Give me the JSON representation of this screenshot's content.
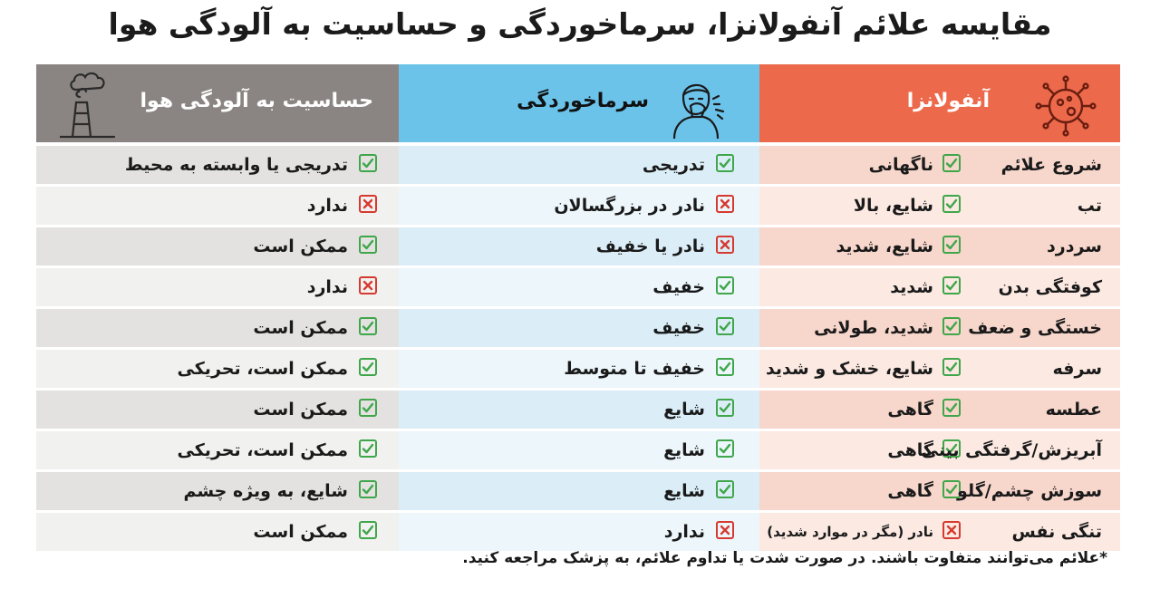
{
  "title": "مقایسه علائم آنفولانزا، سرماخوردگی و حساسیت به آلودگی هوا",
  "headers": {
    "allergy": "حساسیت به آلودگی هوا",
    "cold": "سرماخوردگی",
    "flu": "آنفولانزا"
  },
  "icons": {
    "allergy": "factory-pollution-icon",
    "cold": "sneezing-person-icon",
    "flu": "virus-icon"
  },
  "colors": {
    "allergy_header": "#8a8582",
    "cold_header": "#6cc3ea",
    "flu_header": "#ec6a4b",
    "check": "#3fa64a",
    "cross": "#d63a2f"
  },
  "rows": [
    {
      "symptom": "شروع علائم",
      "flu": "ناگهانی",
      "flu_mark": "check",
      "cold": "تدریجی",
      "cold_mark": "check",
      "allergy": "تدریجی یا وابسته به محیط",
      "allergy_mark": "check"
    },
    {
      "symptom": "تب",
      "flu": "شایع، بالا",
      "flu_mark": "check",
      "cold": "نادر در بزرگسالان",
      "cold_mark": "cross",
      "allergy": "ندارد",
      "allergy_mark": "cross"
    },
    {
      "symptom": "سردرد",
      "flu": "شایع، شدید",
      "flu_mark": "check",
      "cold": "نادر یا خفیف",
      "cold_mark": "cross",
      "allergy": "ممکن است",
      "allergy_mark": "check"
    },
    {
      "symptom": "کوفتگی بدن",
      "flu": "شدید",
      "flu_mark": "check",
      "cold": "خفیف",
      "cold_mark": "check",
      "allergy": "ندارد",
      "allergy_mark": "cross"
    },
    {
      "symptom": "خستگی و ضعف",
      "flu": "شدید، طولانی",
      "flu_mark": "check",
      "cold": "خفیف",
      "cold_mark": "check",
      "allergy": "ممکن است",
      "allergy_mark": "check"
    },
    {
      "symptom": "سرفه",
      "flu": "شایع، خشک و شدید",
      "flu_mark": "check",
      "cold": "خفیف تا متوسط",
      "cold_mark": "check",
      "allergy": "ممکن است، تحریکی",
      "allergy_mark": "check"
    },
    {
      "symptom": "عطسه",
      "flu": "گاهی",
      "flu_mark": "check",
      "cold": "شایع",
      "cold_mark": "check",
      "allergy": "ممکن است",
      "allergy_mark": "check"
    },
    {
      "symptom": "آبریزش/گرفتگی بینی",
      "flu": "گاهی",
      "flu_mark": "check",
      "cold": "شایع",
      "cold_mark": "check",
      "allergy": "ممکن است، تحریکی",
      "allergy_mark": "check"
    },
    {
      "symptom": "سوزش چشم/گلو",
      "flu": "گاهی",
      "flu_mark": "check",
      "cold": "شایع",
      "cold_mark": "check",
      "allergy": "شایع، به ویژه چشم",
      "allergy_mark": "check"
    },
    {
      "symptom": "تنگی نفس",
      "flu": "نادر (مگر در موارد شدید)",
      "flu_mark": "cross",
      "cold": "ندارد",
      "cold_mark": "cross",
      "allergy": "ممکن است",
      "allergy_mark": "check"
    }
  ],
  "footnote": "*علائم می‌توانند متفاوت باشند. در صورت شدت یا تداوم علائم، به پزشک مراجعه کنید."
}
